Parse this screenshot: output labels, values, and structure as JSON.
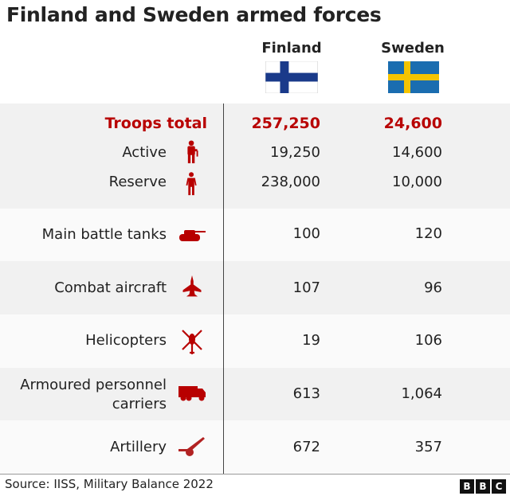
{
  "title": "Finland and Sweden armed forces",
  "columns": [
    "Finland",
    "Sweden"
  ],
  "flags": {
    "finland": {
      "field": "#ffffff",
      "cross": "#1a3a8a"
    },
    "sweden": {
      "field": "#1a6db0",
      "cross": "#f5c400"
    }
  },
  "colors": {
    "accent": "#b80000",
    "row_shade": "#f1f1f1",
    "row_light": "#fafafa"
  },
  "chart_data": {
    "type": "table",
    "title": "Finland and Sweden armed forces",
    "columns": [
      "Finland",
      "Sweden"
    ],
    "rows": [
      {
        "label": "Troops total",
        "icon": "",
        "finland": "257,250",
        "sweden": "24,600",
        "highlight": true
      },
      {
        "label": "Active",
        "icon": "soldier-icon",
        "finland": "19,250",
        "sweden": "14,600"
      },
      {
        "label": "Reserve",
        "icon": "person-icon",
        "finland": "238,000",
        "sweden": "10,000"
      },
      {
        "label": "Main battle tanks",
        "icon": "tank-icon",
        "finland": "100",
        "sweden": "120"
      },
      {
        "label": "Combat aircraft",
        "icon": "fighter-jet-icon",
        "finland": "107",
        "sweden": "96"
      },
      {
        "label": "Helicopters",
        "icon": "helicopter-icon",
        "finland": "19",
        "sweden": "106"
      },
      {
        "label": "Armoured personnel carriers",
        "icon": "armoured-truck-icon",
        "finland": "613",
        "sweden": "1,064"
      },
      {
        "label": "Artillery",
        "icon": "artillery-icon",
        "finland": "672",
        "sweden": "357"
      }
    ]
  },
  "apc_label_lines": [
    "Armoured personnel",
    "carriers"
  ],
  "source": "Source: IISS, Military Balance 2022",
  "logo": [
    "B",
    "B",
    "C"
  ]
}
